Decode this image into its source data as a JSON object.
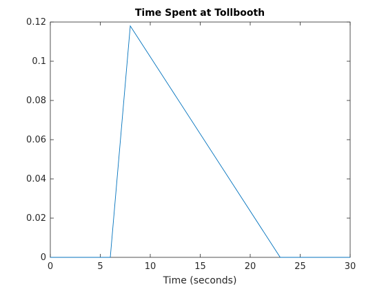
{
  "chart_data": {
    "type": "line",
    "title": "Time Spent at Tollbooth",
    "xlabel": "Time (seconds)",
    "ylabel": "",
    "xlim": [
      0,
      30
    ],
    "ylim": [
      0,
      0.12
    ],
    "xticks": [
      0,
      5,
      10,
      15,
      20,
      25,
      30
    ],
    "xtick_labels": [
      "0",
      "5",
      "10",
      "15",
      "20",
      "25",
      "30"
    ],
    "yticks": [
      0,
      0.02,
      0.04,
      0.06,
      0.08,
      0.1,
      0.12
    ],
    "ytick_labels": [
      "0",
      "0.02",
      "0.04",
      "0.06",
      "0.08",
      "0.1",
      "0.12"
    ],
    "grid": false,
    "series": [
      {
        "color": "#0072bd",
        "x": [
          0,
          6,
          8,
          23,
          30
        ],
        "y": [
          0,
          0,
          0.118,
          0,
          0
        ]
      }
    ]
  }
}
